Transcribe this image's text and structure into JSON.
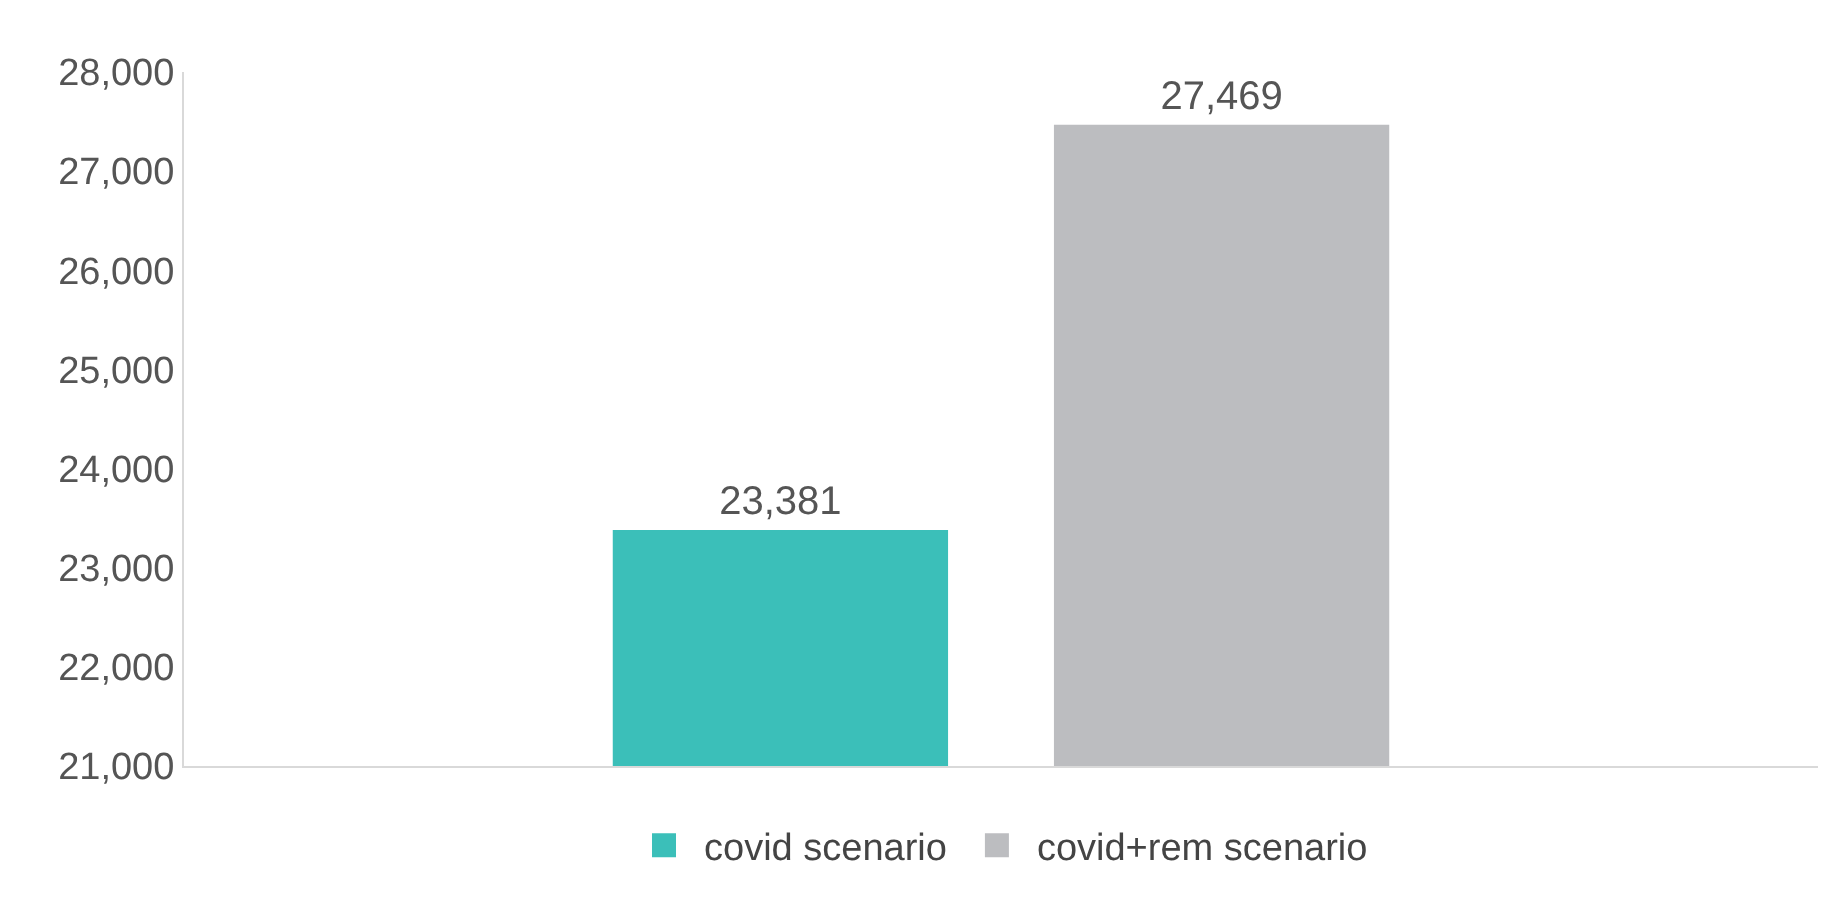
{
  "chart_data": {
    "type": "bar",
    "categories": [
      null
    ],
    "series": [
      {
        "name": "covid scenario",
        "color": "#3bbfb9",
        "values": [
          23381
        ],
        "value_labels": [
          "23,381"
        ]
      },
      {
        "name": "covid+rem scenario",
        "color": "#bcbdc0",
        "values": [
          27469
        ],
        "value_labels": [
          "27,469"
        ]
      }
    ],
    "ylim": [
      21000,
      28000
    ],
    "yticks": [
      {
        "value": 21000,
        "label": "21,000"
      },
      {
        "value": 22000,
        "label": "22,000"
      },
      {
        "value": 23000,
        "label": "23,000"
      },
      {
        "value": 24000,
        "label": "24,000"
      },
      {
        "value": 25000,
        "label": "25,000"
      },
      {
        "value": 26000,
        "label": "26,000"
      },
      {
        "value": 27000,
        "label": "27,000"
      },
      {
        "value": 28000,
        "label": "28,000"
      }
    ],
    "grid": false,
    "legend": "bottom"
  }
}
